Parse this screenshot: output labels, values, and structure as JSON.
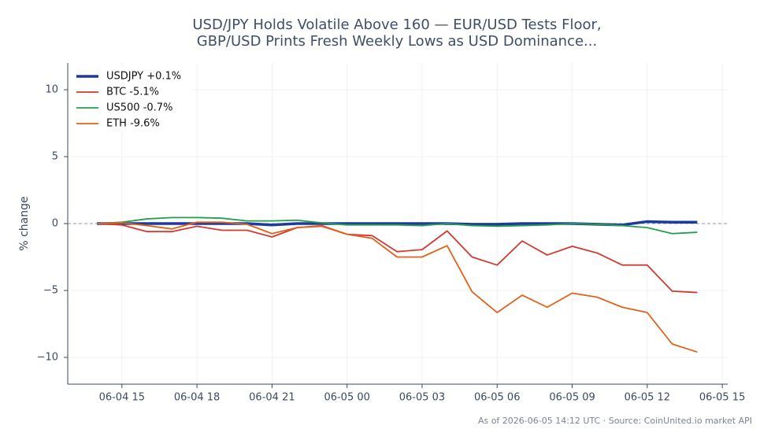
{
  "chart_data": {
    "type": "line",
    "title": [
      "USD/JPY Holds Volatile Above 160 — EUR/USD Tests Floor,",
      "GBP/USD Prints Fresh Weekly Lows as USD Dominance..."
    ],
    "y_label": "% change",
    "source_note": "As of 2026-06-05 14:12 UTC · Source: CoinUnited.io market API",
    "x": [
      "06-04 14",
      "06-04 15",
      "06-04 16",
      "06-04 17",
      "06-04 18",
      "06-04 19",
      "06-04 20",
      "06-04 21",
      "06-04 22",
      "06-04 23",
      "06-05 00",
      "06-05 01",
      "06-05 02",
      "06-05 03",
      "06-05 04",
      "06-05 05",
      "06-05 06",
      "06-05 07",
      "06-05 08",
      "06-05 09",
      "06-05 10",
      "06-05 11",
      "06-05 12",
      "06-05 13",
      "06-05 14"
    ],
    "xlim": [
      "06-04 12:50",
      "06-05 15:13"
    ],
    "xticks": [
      "06-04 15",
      "06-04 18",
      "06-04 21",
      "06-05 00",
      "06-05 03",
      "06-05 06",
      "06-05 09",
      "06-05 12",
      "06-05 15"
    ],
    "ylim": [
      -12,
      12
    ],
    "yticks": [
      {
        "value": -10,
        "label": "−10"
      },
      {
        "value": -5,
        "label": "−5"
      },
      0,
      5,
      10
    ],
    "grid": true,
    "legend": "upper left",
    "series": [
      {
        "name": "USDJPY +0.1%",
        "color": "#1f3a9e",
        "values": [
          0,
          0,
          0,
          0,
          0,
          0,
          0,
          -0.1,
          0,
          0,
          0,
          0,
          0,
          0,
          0,
          -0.05,
          -0.05,
          0,
          0,
          0,
          -0.05,
          -0.1,
          0.15,
          0.1,
          0.1
        ]
      },
      {
        "name": "BTC -5.1%",
        "color": "#d13a2f",
        "values": [
          0,
          -0.1,
          -0.6,
          -0.6,
          -0.2,
          -0.5,
          -0.5,
          -1.0,
          -0.3,
          -0.2,
          -0.8,
          -0.9,
          -2.1,
          -1.95,
          -0.55,
          -2.5,
          -3.1,
          -1.3,
          -2.35,
          -1.7,
          -2.2,
          -3.1,
          -3.1,
          -5.05,
          -5.15
        ]
      },
      {
        "name": "US500 -0.7%",
        "color": "#22a04b",
        "values": [
          0,
          0.1,
          0.35,
          0.45,
          0.45,
          0.4,
          0.2,
          0.2,
          0.25,
          0.05,
          -0.1,
          -0.1,
          -0.1,
          -0.15,
          0,
          -0.15,
          -0.2,
          -0.15,
          -0.1,
          0,
          -0.05,
          -0.15,
          -0.3,
          -0.75,
          -0.65
        ]
      },
      {
        "name": "ETH -9.6%",
        "color": "#e0621b",
        "values": [
          0,
          0.05,
          -0.15,
          -0.4,
          0.1,
          0.1,
          -0.05,
          -0.75,
          -0.3,
          -0.15,
          -0.8,
          -1.1,
          -2.5,
          -2.5,
          -1.65,
          -5.1,
          -6.65,
          -5.35,
          -6.25,
          -5.2,
          -5.5,
          -6.25,
          -6.65,
          -9.0,
          -9.6
        ]
      }
    ]
  }
}
